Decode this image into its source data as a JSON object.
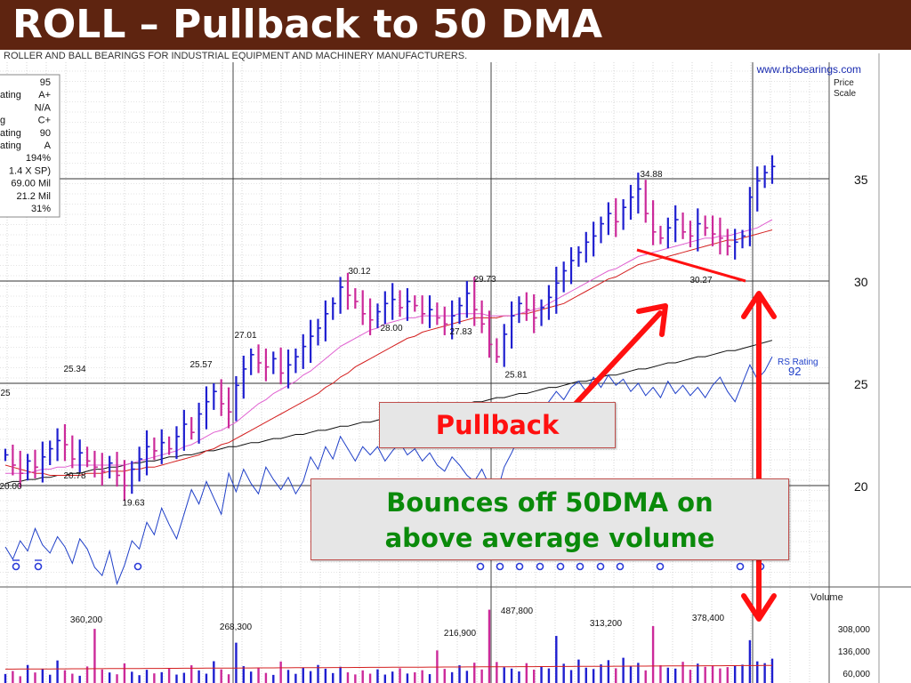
{
  "title": "ROLL – Pullback to 50 DMA",
  "company_line": "ROLLER AND BALL BEARINGS FOR INDUSTRIAL EQUIPMENT AND MACHINERY MANUFACTURERS.",
  "website": "www.rbcbearings.com",
  "price_scale_label": [
    "Price",
    "Scale"
  ],
  "volume_label": "Volume",
  "rs_rating_label": "RS Rating",
  "rs_rating_value": "92",
  "left_stats": [
    {
      "label": "",
      "value": "95"
    },
    {
      "label": "ating",
      "value": "A+"
    },
    {
      "label": "",
      "value": "N/A"
    },
    {
      "label": "g",
      "value": "C+"
    },
    {
      "label": "ating",
      "value": "90"
    },
    {
      "label": "ating",
      "value": "A"
    },
    {
      "label": "",
      "value": "194%"
    },
    {
      "label": "",
      "value": "1.4 X SP)"
    },
    {
      "label": "",
      "value": "69.00 Mil"
    },
    {
      "label": "",
      "value": "21.2 Mil"
    },
    {
      "label": "",
      "value": "31%"
    }
  ],
  "callouts": {
    "pullback": "Pullback",
    "bounce_line1": "Bounces off 50DMA on",
    "bounce_line2": "above average volume"
  },
  "colors": {
    "title_bg": "#5e2410",
    "up_bar": "#1f1fd0",
    "down_bar": "#cc2a9a",
    "ma50": "#d42020",
    "ma10": "#e060d0",
    "ma200": "#101010",
    "rs_line": "#1f3fc8",
    "arrow": "#ff1010",
    "callout_green": "#0a8a0a"
  },
  "chart_data": [
    {
      "type": "line",
      "title": "",
      "ylabel": "Price Scale",
      "y_ticks": [
        35,
        30,
        25,
        20
      ],
      "ylim": [
        15,
        40
      ],
      "price_annotations": [
        {
          "label": "25.34",
          "value": 25.34
        },
        {
          "label": "20.78",
          "value": 20.78
        },
        {
          "label": "19.63",
          "value": 19.63
        },
        {
          "label": "25.57",
          "value": 25.57
        },
        {
          "label": "27.01",
          "value": 27.01
        },
        {
          "label": "30.12",
          "value": 30.12
        },
        {
          "label": "28.00",
          "value": 28.0
        },
        {
          "label": "27.83",
          "value": 27.83
        },
        {
          "label": "29.73",
          "value": 29.73
        },
        {
          "label": "25.81",
          "value": 25.81
        },
        {
          "label": "34.88",
          "value": 34.88
        },
        {
          "label": "30.27",
          "value": 30.27
        },
        {
          "label": "20.00",
          "value": 20.0
        },
        {
          "label": "25",
          "value": 25
        }
      ],
      "series": [
        {
          "name": "Price",
          "values": [
            21.5,
            21.0,
            20.6,
            21.2,
            20.9,
            21.4,
            21.8,
            22.2,
            22.0,
            21.3,
            21.6,
            21.2,
            20.9,
            20.7,
            21.1,
            20.5,
            20.0,
            20.8,
            21.3,
            21.9,
            21.7,
            22.1,
            21.8,
            22.4,
            23.0,
            22.6,
            23.5,
            24.1,
            24.6,
            24.0,
            23.6,
            24.9,
            25.7,
            26.4,
            26.0,
            25.8,
            26.2,
            25.5,
            25.9,
            26.3,
            26.8,
            27.3,
            27.7,
            28.4,
            28.9,
            29.7,
            29.3,
            29.0,
            28.4,
            28.1,
            28.5,
            28.9,
            29.1,
            28.7,
            29.0,
            28.8,
            28.4,
            28.6,
            28.2,
            27.9,
            28.3,
            28.8,
            29.4,
            28.6,
            27.9,
            26.9,
            26.3,
            27.4,
            28.3,
            28.9,
            28.6,
            28.2,
            28.7,
            29.2,
            29.9,
            30.5,
            31.0,
            31.4,
            31.9,
            32.2,
            32.8,
            33.3,
            32.9,
            33.6,
            34.1,
            34.5,
            33.3,
            32.4,
            32.1,
            32.6,
            33.0,
            32.4,
            32.2,
            32.8,
            32.6,
            32.3,
            32.1,
            31.7,
            31.9,
            32.2,
            34.1,
            34.9,
            35.3,
            35.6
          ]
        },
        {
          "name": "",
          "values": [
            20.6,
            20.6,
            20.6,
            20.6,
            20.7,
            20.8,
            20.8,
            20.9,
            20.9,
            21.0,
            21.0,
            21.0,
            21.0,
            21.0,
            21.0,
            21.0,
            21.0,
            21.1,
            21.2,
            21.3,
            21.4,
            21.5,
            21.6,
            21.7,
            21.9,
            22.0,
            22.2,
            22.4,
            22.6,
            22.7,
            22.9,
            23.1,
            23.4,
            23.7,
            24.0,
            24.2,
            24.5,
            24.7,
            24.9,
            25.1,
            25.4,
            25.6,
            25.9,
            26.2,
            26.5,
            26.8,
            27.0,
            27.2,
            27.4,
            27.6,
            27.7,
            27.9,
            28.0,
            28.1,
            28.2,
            28.2,
            28.3,
            28.3,
            28.3,
            28.3,
            28.3,
            28.4,
            28.4,
            28.4,
            28.4,
            28.3,
            28.3,
            28.3,
            28.3,
            28.4,
            28.5,
            28.6,
            28.7,
            28.9,
            29.1,
            29.3,
            29.5,
            29.7,
            29.9,
            30.1,
            30.3,
            30.5,
            30.6,
            30.8,
            31.0,
            31.2,
            31.3,
            31.4,
            31.5,
            31.6,
            31.7,
            31.8,
            31.9,
            32.0,
            32.1,
            32.1,
            32.2,
            32.2,
            32.3,
            32.4,
            32.5,
            32.6,
            32.8,
            33.0
          ]
        },
        {
          "name": "",
          "values": [
            21.0,
            20.9,
            20.8,
            20.7,
            20.6,
            20.6,
            20.5,
            20.5,
            20.5,
            20.5,
            20.5,
            20.6,
            20.6,
            20.6,
            20.7,
            20.7,
            20.7,
            20.8,
            20.8,
            20.9,
            20.9,
            21.0,
            21.1,
            21.2,
            21.3,
            21.4,
            21.5,
            21.7,
            21.8,
            22.0,
            22.1,
            22.3,
            22.5,
            22.7,
            22.9,
            23.1,
            23.3,
            23.5,
            23.7,
            23.9,
            24.1,
            24.3,
            24.5,
            24.8,
            25.0,
            25.3,
            25.5,
            25.8,
            26.0,
            26.2,
            26.4,
            26.6,
            26.8,
            27.0,
            27.2,
            27.3,
            27.5,
            27.6,
            27.7,
            27.8,
            27.9,
            28.0,
            28.1,
            28.2,
            28.2,
            28.2,
            28.2,
            28.3,
            28.3,
            28.4,
            28.4,
            28.5,
            28.6,
            28.7,
            28.8,
            28.9,
            29.1,
            29.3,
            29.5,
            29.7,
            29.9,
            30.1,
            30.2,
            30.4,
            30.6,
            30.8,
            30.9,
            31.0,
            31.1,
            31.2,
            31.3,
            31.4,
            31.5,
            31.6,
            31.7,
            31.8,
            31.9,
            32.0,
            32.0,
            32.1,
            32.2,
            32.3,
            32.4,
            32.5
          ]
        },
        {
          "name": "",
          "values": [
            20.1,
            20.2,
            20.2,
            20.3,
            20.3,
            20.4,
            20.4,
            20.5,
            20.5,
            20.6,
            20.6,
            20.7,
            20.8,
            20.8,
            20.9,
            20.9,
            21.0,
            21.1,
            21.1,
            21.2,
            21.2,
            21.3,
            21.4,
            21.4,
            21.5,
            21.5,
            21.6,
            21.7,
            21.7,
            21.8,
            21.9,
            21.9,
            22.0,
            22.1,
            22.1,
            22.2,
            22.3,
            22.3,
            22.4,
            22.5,
            22.5,
            22.6,
            22.7,
            22.7,
            22.8,
            22.9,
            22.9,
            23.0,
            23.1,
            23.1,
            23.2,
            23.3,
            23.3,
            23.4,
            23.5,
            23.5,
            23.6,
            23.7,
            23.7,
            23.8,
            23.9,
            23.9,
            24.0,
            24.1,
            24.1,
            24.2,
            24.3,
            24.3,
            24.4,
            24.5,
            24.5,
            24.6,
            24.7,
            24.8,
            24.8,
            24.9,
            25.0,
            25.1,
            25.1,
            25.2,
            25.3,
            25.4,
            25.4,
            25.5,
            25.6,
            25.7,
            25.7,
            25.8,
            25.9,
            26.0,
            26.0,
            26.1,
            26.2,
            26.3,
            26.3,
            26.4,
            26.5,
            26.6,
            26.6,
            26.7,
            26.8,
            26.9,
            27.0,
            27.1
          ]
        }
      ]
    },
    {
      "type": "line",
      "title": "",
      "series": [
        {
          "name": "RS Rating",
          "values": [
            17.0,
            16.4,
            17.3,
            16.8,
            17.9,
            17.1,
            16.7,
            17.5,
            17.0,
            16.2,
            17.4,
            16.9,
            16.0,
            15.6,
            16.8,
            15.2,
            16.1,
            17.3,
            16.9,
            18.2,
            17.6,
            18.9,
            18.1,
            17.4,
            18.6,
            19.8,
            19.1,
            20.2,
            19.4,
            18.6,
            20.6,
            19.7,
            20.8,
            20.1,
            19.6,
            20.9,
            20.3,
            19.8,
            20.4,
            19.6,
            20.2,
            21.4,
            20.8,
            21.9,
            21.3,
            22.4,
            21.8,
            21.2,
            21.9,
            21.5,
            21.9,
            21.2,
            21.7,
            22.1,
            21.5,
            21.8,
            21.2,
            21.6,
            21.0,
            20.7,
            21.4,
            21.0,
            20.5,
            20.2,
            20.8,
            20.0,
            19.6,
            20.9,
            21.6,
            22.4,
            22.9,
            23.4,
            23.8,
            24.1,
            24.6,
            24.2,
            24.8,
            25.1,
            24.6,
            25.3,
            24.8,
            25.4,
            24.9,
            25.2,
            24.6,
            25.0,
            24.4,
            24.8,
            24.3,
            25.1,
            24.5,
            24.9,
            24.4,
            24.8,
            24.3,
            24.9,
            25.3,
            24.6,
            24.1,
            25.0,
            25.9,
            25.2,
            25.6,
            26.3
          ]
        }
      ]
    },
    {
      "type": "bar",
      "title": "",
      "ylabel": "Volume",
      "y_ticks": [
        "308,000",
        "136,000",
        "60,000"
      ],
      "annotations": [
        "360,200",
        "268,300",
        "216,900",
        "487,800",
        "313,200",
        "378,400"
      ],
      "values": [
        60000,
        80000,
        45000,
        120000,
        70000,
        95000,
        55000,
        150000,
        85000,
        62000,
        48000,
        110000,
        360200,
        90000,
        70000,
        58000,
        130000,
        75000,
        52000,
        88000,
        64000,
        72000,
        95000,
        56000,
        68000,
        118000,
        84000,
        62000,
        145000,
        91000,
        58000,
        268300,
        112000,
        76000,
        99000,
        67000,
        54000,
        143000,
        87000,
        61000,
        102000,
        79000,
        120000,
        95000,
        66000,
        108000,
        71000,
        57000,
        84000,
        62000,
        91000,
        56000,
        76000,
        98000,
        63000,
        71000,
        85000,
        59000,
        216900,
        94000,
        72000,
        118000,
        81000,
        135000,
        90000,
        487800,
        140000,
        105000,
        96000,
        77000,
        132000,
        89000,
        110000,
        97000,
        313200,
        128000,
        86000,
        156000,
        102000,
        93000,
        124000,
        152000,
        98000,
        168000,
        113000,
        134000,
        84000,
        378400,
        118000,
        102000,
        96000,
        141000,
        88000,
        129000,
        108000,
        117000,
        97000,
        106000,
        115000,
        122000,
        285000,
        144000,
        132000,
        162000
      ]
    }
  ]
}
